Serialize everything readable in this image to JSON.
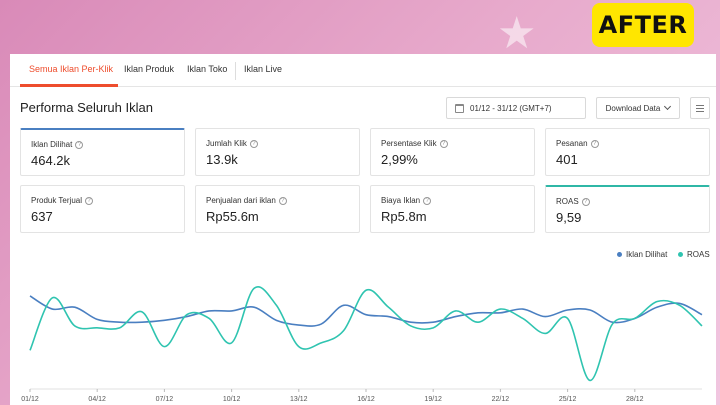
{
  "after_badge": "AFTER",
  "tabs": [
    {
      "label": "Semua Iklan Per-Klik"
    },
    {
      "label": "Iklan Produk"
    },
    {
      "label": "Iklan Toko"
    },
    {
      "label": "Iklan Live"
    }
  ],
  "page_title": "Performa Seluruh Iklan",
  "date_range": "01/12 - 31/12 (GMT+7)",
  "download_label": "Download Data",
  "metrics": [
    {
      "label": "Iklan Dilihat",
      "value": "464.2k"
    },
    {
      "label": "Jumlah Klik",
      "value": "13.9k"
    },
    {
      "label": "Persentase Klik",
      "value": "2,99%"
    },
    {
      "label": "Pesanan",
      "value": "401"
    },
    {
      "label": "Produk Terjual",
      "value": "637"
    },
    {
      "label": "Penjualan dari iklan",
      "value": "Rp55.6m"
    },
    {
      "label": "Biaya Iklan",
      "value": "Rp5.8m"
    },
    {
      "label": "ROAS",
      "value": "9,59"
    }
  ],
  "colors": {
    "accent": "#ee4d2d",
    "blue_series": "#4a7fc1",
    "teal_series": "#2fc4b0"
  },
  "chart_data": {
    "type": "line",
    "x": [
      "01/12",
      "02/12",
      "03/12",
      "04/12",
      "05/12",
      "06/12",
      "07/12",
      "08/12",
      "09/12",
      "10/12",
      "11/12",
      "12/12",
      "13/12",
      "14/12",
      "15/12",
      "16/12",
      "17/12",
      "18/12",
      "19/12",
      "20/12",
      "21/12",
      "22/12",
      "23/12",
      "24/12",
      "25/12",
      "26/12",
      "27/12",
      "28/12",
      "29/12",
      "30/12",
      "31/12"
    ],
    "tick_labels": [
      "01/12",
      "04/12",
      "07/12",
      "10/12",
      "13/12",
      "16/12",
      "19/12",
      "22/12",
      "25/12",
      "28/12"
    ],
    "tick_indices": [
      0,
      3,
      6,
      9,
      12,
      15,
      18,
      21,
      24,
      27
    ],
    "series": [
      {
        "name": "Iklan Dilihat",
        "values": [
          72,
          58,
          60,
          47,
          44,
          44,
          46,
          50,
          56,
          56,
          60,
          46,
          41,
          42,
          62,
          52,
          50,
          44,
          44,
          50,
          54,
          54,
          58,
          50,
          57,
          57,
          44,
          48,
          60,
          64,
          52
        ]
      },
      {
        "name": "ROAS",
        "values": [
          14,
          70,
          40,
          38,
          38,
          55,
          18,
          52,
          48,
          22,
          80,
          62,
          18,
          22,
          35,
          78,
          60,
          40,
          38,
          56,
          44,
          58,
          48,
          32,
          48,
          -18,
          42,
          48,
          66,
          62,
          40
        ]
      }
    ],
    "legend": "top-right"
  }
}
